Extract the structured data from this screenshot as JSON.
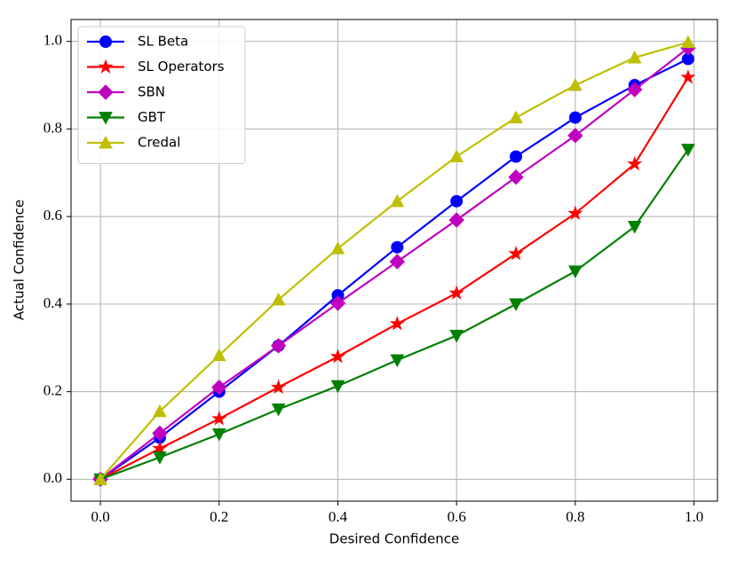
{
  "chart_data": {
    "type": "line",
    "xlabel": "Desired Confidence",
    "ylabel": "Actual Confidence",
    "x": [
      0,
      0.1,
      0.2,
      0.3,
      0.4,
      0.5,
      0.6,
      0.7,
      0.8,
      0.9,
      0.99
    ],
    "series": [
      {
        "name": "SL Beta",
        "color": "#0000ff",
        "marker": "circle",
        "values": [
          0,
          0.095,
          0.2,
          0.305,
          0.42,
          0.53,
          0.635,
          0.737,
          0.826,
          0.9,
          0.96
        ]
      },
      {
        "name": "SL Operators",
        "color": "#ff0000",
        "marker": "star",
        "values": [
          0,
          0.07,
          0.138,
          0.21,
          0.28,
          0.355,
          0.425,
          0.515,
          0.607,
          0.72,
          0.918
        ]
      },
      {
        "name": "SBN",
        "color": "#bf00bf",
        "marker": "diamond",
        "values": [
          0,
          0.105,
          0.21,
          0.305,
          0.402,
          0.497,
          0.592,
          0.69,
          0.785,
          0.89,
          0.985
        ]
      },
      {
        "name": "GBT",
        "color": "#008000",
        "marker": "triangle-down",
        "values": [
          0,
          0.05,
          0.103,
          0.16,
          0.213,
          0.272,
          0.328,
          0.4,
          0.475,
          0.577,
          0.753
        ]
      },
      {
        "name": "Credal",
        "color": "#bfbf00",
        "marker": "triangle-up",
        "values": [
          0,
          0.155,
          0.283,
          0.41,
          0.527,
          0.635,
          0.737,
          0.826,
          0.9,
          0.963,
          0.998
        ]
      }
    ],
    "xlim": [
      -0.0495,
      1.0395
    ],
    "ylim": [
      -0.05,
      1.05
    ],
    "xticks": [
      {
        "value": 0,
        "label": "0.0"
      },
      {
        "value": 0.2,
        "label": "0.2"
      },
      {
        "value": 0.4,
        "label": "0.4"
      },
      {
        "value": 0.6,
        "label": "0.6"
      },
      {
        "value": 0.8,
        "label": "0.8"
      },
      {
        "value": 1,
        "label": "1.0"
      }
    ],
    "yticks": [
      {
        "value": 0,
        "label": "0.0"
      },
      {
        "value": 0.2,
        "label": "0.2"
      },
      {
        "value": 0.4,
        "label": "0.4"
      },
      {
        "value": 0.6,
        "label": "0.6"
      },
      {
        "value": 0.8,
        "label": "0.8"
      },
      {
        "value": 1,
        "label": "1.0"
      }
    ],
    "grid": true,
    "legend": "upper-left"
  }
}
